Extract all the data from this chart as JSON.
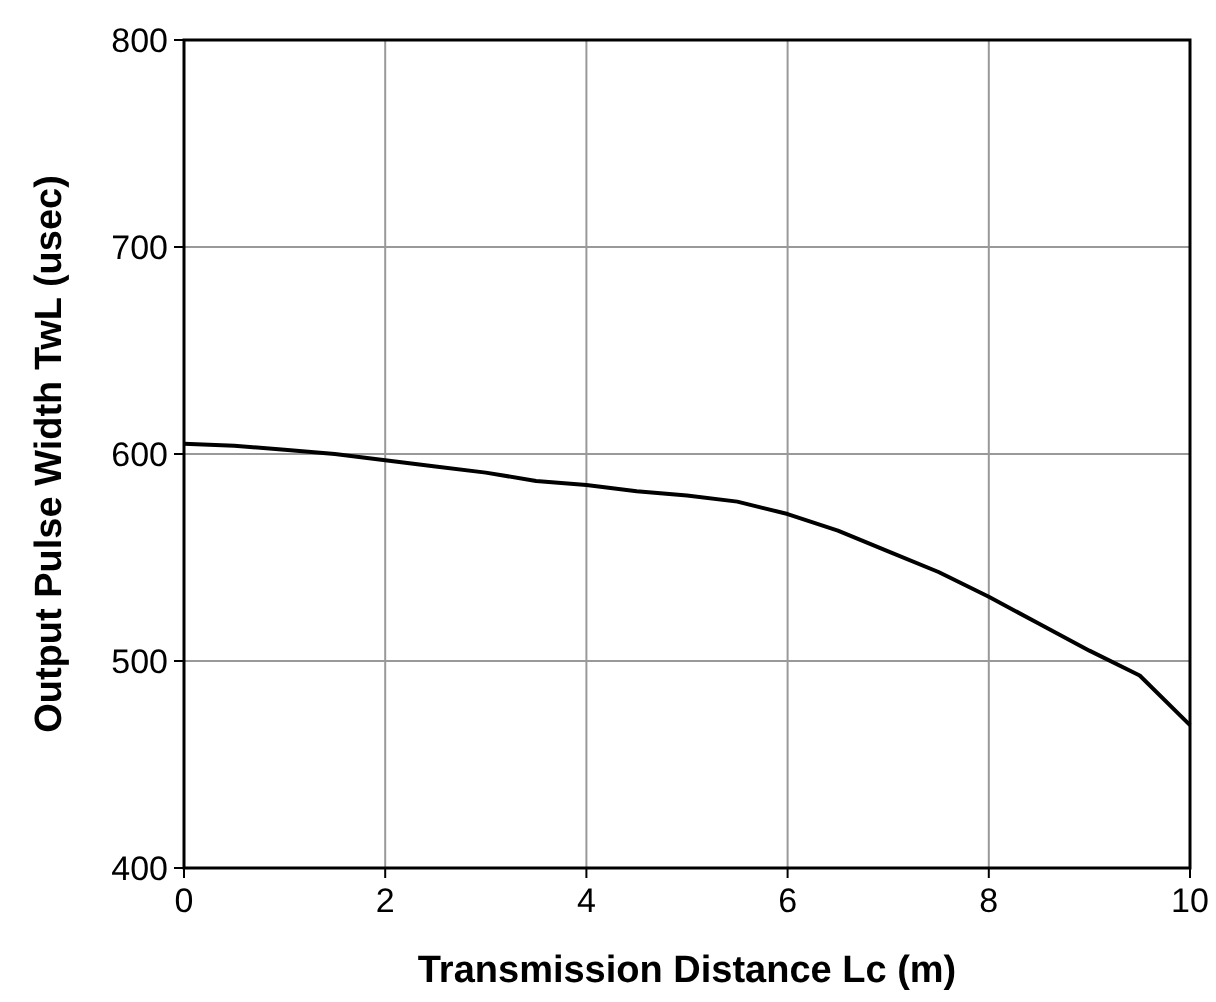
{
  "chart_data": {
    "type": "line",
    "xlabel": "Transmission Distance Lc (m)",
    "ylabel": "Output Pulse Width TwL (usec)",
    "x": [
      0,
      0.5,
      1,
      1.5,
      2,
      2.5,
      3,
      3.5,
      4,
      4.5,
      5,
      5.5,
      6,
      6.5,
      7,
      7.5,
      8,
      8.5,
      9,
      9.5,
      10
    ],
    "series": [
      {
        "color": "#000000",
        "values": [
          605,
          604,
          602,
          600,
          597,
          594,
          591,
          587,
          585,
          582,
          580,
          577,
          571,
          563,
          553,
          543,
          531,
          518,
          505,
          493,
          469
        ]
      }
    ],
    "xlim": [
      0,
      10
    ],
    "ylim": [
      400,
      800
    ],
    "xticks": [
      0,
      2,
      4,
      6,
      8,
      10
    ],
    "yticks": [
      400,
      500,
      600,
      700,
      800
    ],
    "grid": true
  }
}
